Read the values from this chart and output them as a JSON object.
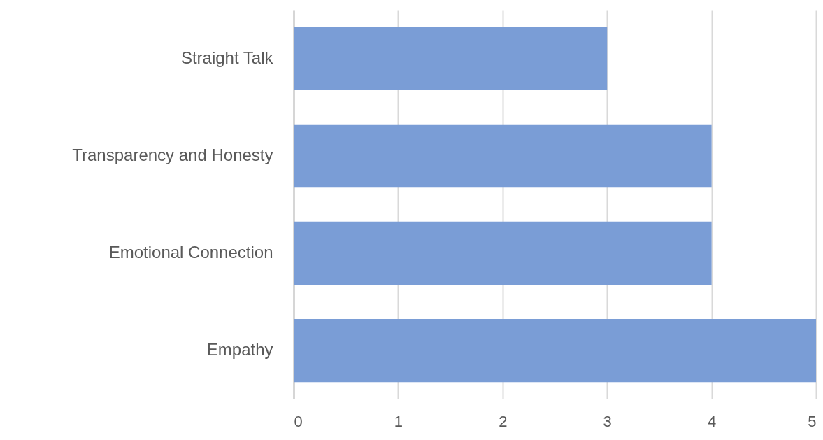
{
  "chart_data": {
    "type": "bar",
    "orientation": "horizontal",
    "categories": [
      "Straight Talk",
      "Transparency and Honesty",
      "Emotional Connection",
      "Empathy"
    ],
    "values": [
      3,
      4,
      4,
      5
    ],
    "color": "#7a9dd6",
    "xlim": [
      0,
      5
    ],
    "xticks": [
      0,
      1,
      2,
      3,
      4,
      5
    ],
    "grid": "x"
  }
}
